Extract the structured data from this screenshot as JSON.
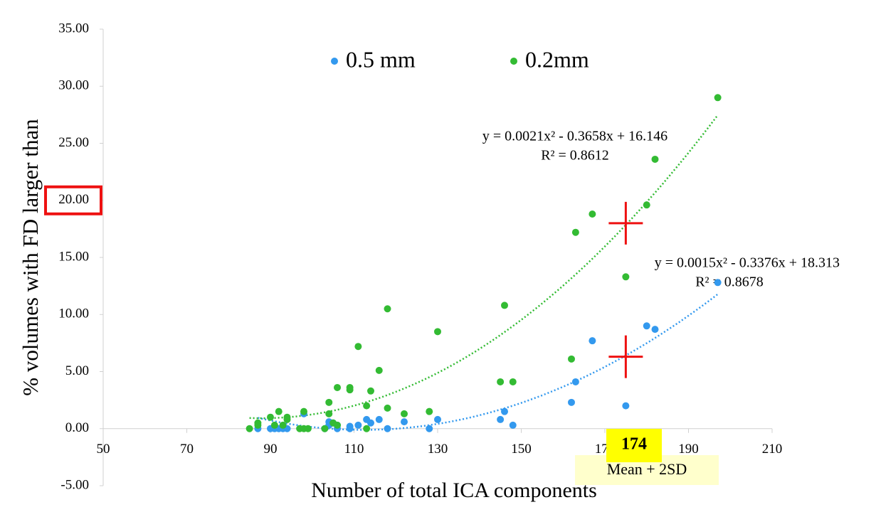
{
  "chart_data": {
    "type": "scatter",
    "xlabel": "Number of total ICA components",
    "ylabel": "% volumes with FD larger than",
    "xlim": [
      50,
      210
    ],
    "xticks": [
      50,
      70,
      90,
      110,
      130,
      150,
      170,
      190,
      210
    ],
    "ylim": [
      -5,
      35
    ],
    "yticks": [
      {
        "value": -5,
        "label": "-5.00"
      },
      {
        "value": 0,
        "label": "0.00"
      },
      {
        "value": 5,
        "label": "5.00"
      },
      {
        "value": 10,
        "label": "10.00"
      },
      {
        "value": 15,
        "label": "15.00"
      },
      {
        "value": 20,
        "label": "20.00"
      },
      {
        "value": 25,
        "label": "25.00"
      },
      {
        "value": 30,
        "label": "30.00"
      },
      {
        "value": 35,
        "label": "35.00"
      }
    ],
    "highlighted_ytick": 20,
    "grid": false,
    "legend": "top",
    "series": [
      {
        "name": "0.5 mm",
        "color": "#3399ee",
        "x": [
          87,
          90,
          91,
          92,
          93,
          94,
          98,
          103,
          104,
          104,
          105,
          106,
          106,
          109,
          109,
          111,
          113,
          114,
          116,
          118,
          122,
          128,
          130,
          145,
          146,
          148,
          162,
          163,
          167,
          175,
          180,
          182,
          197
        ],
        "values": [
          0,
          0,
          0,
          0,
          0,
          0,
          1.3,
          0,
          0.3,
          0.6,
          0.5,
          0,
          0.3,
          0.2,
          0,
          0.3,
          0.8,
          0.5,
          0.8,
          0,
          0.6,
          0,
          0.8,
          0.8,
          1.5,
          0.3,
          2.3,
          4.1,
          7.7,
          2.0,
          9.0,
          8.7,
          12.8
        ],
        "equation": "y = 0.0015x² - 0.3376x + 18.313",
        "r2": "R² = 0.8678"
      },
      {
        "name": "0.2mm",
        "color": "#33bb33",
        "x": [
          85,
          87,
          87,
          90,
          91,
          92,
          93,
          94,
          94,
          97,
          98,
          98,
          99,
          103,
          104,
          104,
          105,
          106,
          106,
          109,
          109,
          111,
          113,
          113,
          114,
          116,
          118,
          118,
          122,
          128,
          130,
          145,
          146,
          148,
          162,
          163,
          167,
          175,
          180,
          182,
          197
        ],
        "values": [
          0,
          0.3,
          0.5,
          1.0,
          0.3,
          1.5,
          0.3,
          1.0,
          0.8,
          0,
          1.5,
          0,
          0,
          0,
          1.3,
          2.3,
          0.5,
          3.6,
          0.3,
          3.6,
          3.4,
          7.2,
          2.0,
          0,
          3.3,
          5.1,
          10.5,
          1.8,
          1.3,
          1.5,
          8.5,
          4.1,
          10.8,
          4.1,
          6.1,
          17.2,
          18.8,
          13.3,
          19.6,
          23.6,
          29.0
        ],
        "equation": "y = 0.0021x² - 0.3658x + 16.146",
        "r2": "R² = 0.8612"
      }
    ],
    "markers": [
      {
        "x": 175,
        "y": 18.0,
        "color": "#ee1111"
      },
      {
        "x": 175,
        "y": 6.3,
        "color": "#ee1111"
      }
    ],
    "threshold_label": "174",
    "threshold_note": "Mean + 2SD"
  }
}
